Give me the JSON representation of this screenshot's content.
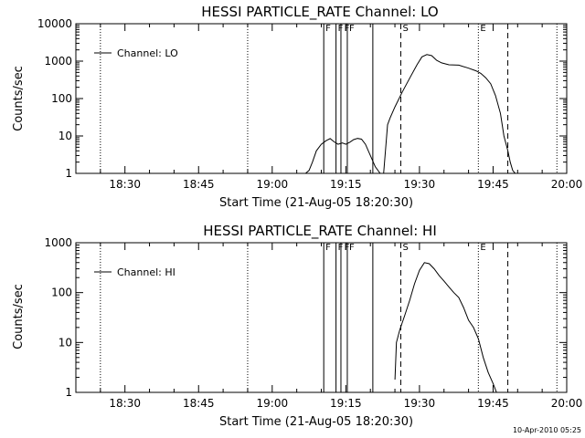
{
  "chart_data": [
    {
      "type": "line",
      "title": "HESSI PARTICLE_RATE Channel: LO",
      "xlabel": "Start Time (21-Aug-05 18:20:30)",
      "ylabel": "Counts/sec",
      "x_tick_labels": [
        "18:30",
        "18:45",
        "19:00",
        "19:15",
        "19:30",
        "19:45",
        "20:00"
      ],
      "x_ticks_min": [
        10,
        25,
        40,
        55,
        70,
        85,
        100
      ],
      "xlim_min": [
        0,
        100
      ],
      "yscale": "log",
      "ylim": [
        1,
        10000
      ],
      "y_ticks": [
        1,
        10,
        100,
        1000,
        10000
      ],
      "y_tick_labels": [
        "1",
        "10",
        "100",
        "1000",
        "10000"
      ],
      "legend": {
        "position": "top-left",
        "entries": [
          "Channel: LO"
        ]
      },
      "series": [
        {
          "name": "Channel: LO",
          "points": [
            [
              0,
              1
            ],
            [
              43,
              1
            ]
          ],
          "x_min": [
            46.8,
            47.5,
            48.2,
            49.0,
            50.0,
            51.0,
            51.8,
            52.6,
            53.4,
            54.3,
            55.0,
            55.8,
            56.6,
            57.4,
            58.2,
            59.0,
            60.0,
            61.0,
            62.0,
            62.7,
            63.5,
            64.0,
            65.0,
            66.5,
            68.0,
            69.5,
            70.5,
            71.5,
            72.5,
            73.5,
            74.5,
            76.0,
            78.0,
            80.0,
            81.5,
            82.5,
            83.5,
            84.5,
            85.5,
            86.5,
            87.2,
            88.0,
            88.5,
            89.0,
            89.5,
            89.8
          ],
          "y": [
            1,
            1.2,
            2,
            4,
            6,
            7.5,
            8.5,
            7,
            6,
            6.5,
            6,
            6.8,
            8,
            8.6,
            8.2,
            6,
            3,
            1.5,
            1,
            1,
            20,
            30,
            60,
            150,
            350,
            800,
            1300,
            1500,
            1400,
            1050,
            900,
            800,
            780,
            650,
            550,
            470,
            360,
            250,
            120,
            40,
            10,
            4,
            2,
            1.2,
            1,
            1
          ]
        }
      ],
      "dotted_lines_min": [
        5,
        35,
        82,
        98
      ],
      "solid_lines_min": [
        50.5,
        53.0,
        54.0,
        55.3,
        60.5
      ],
      "dashed_lines_min": [
        66.2,
        88.0
      ],
      "markers": [
        {
          "label": "F",
          "x_min": 50.5
        },
        {
          "label": "F",
          "x_min": 53.0
        },
        {
          "label": "F",
          "x_min": 54.3
        },
        {
          "label": "F",
          "x_min": 55.3
        },
        {
          "label": "S",
          "x_min": 66.2
        },
        {
          "label": "E",
          "x_min": 82.0
        }
      ]
    },
    {
      "type": "line",
      "title": "HESSI PARTICLE_RATE Channel: HI",
      "xlabel": "Start Time (21-Aug-05 18:20:30)",
      "ylabel": "Counts/sec",
      "x_tick_labels": [
        "18:30",
        "18:45",
        "19:00",
        "19:15",
        "19:30",
        "19:45",
        "20:00"
      ],
      "x_ticks_min": [
        10,
        25,
        40,
        55,
        70,
        85,
        100
      ],
      "xlim_min": [
        0,
        100
      ],
      "yscale": "log",
      "ylim": [
        1,
        1000
      ],
      "y_ticks": [
        1,
        10,
        100,
        1000
      ],
      "y_tick_labels": [
        "1",
        "10",
        "100",
        "1000"
      ],
      "legend": {
        "position": "top-left",
        "entries": [
          "Channel: HI"
        ]
      },
      "series": [
        {
          "name": "Channel: HI",
          "x_min": [
            65.0,
            65.3,
            66.0,
            67.0,
            68.0,
            69.0,
            70.0,
            71.0,
            72.0,
            73.0,
            74.0,
            75.0,
            76.0,
            77.0,
            78.0,
            79.0,
            80.0,
            81.0,
            82.0,
            83.0,
            84.0,
            85.0,
            85.7
          ],
          "y": [
            1.8,
            10,
            18,
            35,
            70,
            150,
            280,
            400,
            380,
            300,
            220,
            170,
            130,
            100,
            80,
            50,
            28,
            20,
            12,
            5,
            2.5,
            1.5,
            1
          ]
        }
      ],
      "dotted_lines_min": [
        5,
        35,
        82,
        98
      ],
      "solid_lines_min": [
        50.5,
        53.0,
        54.0,
        55.3,
        60.5
      ],
      "dashed_lines_min": [
        66.2,
        88.0
      ],
      "markers": [
        {
          "label": "F",
          "x_min": 50.5
        },
        {
          "label": "F",
          "x_min": 53.0
        },
        {
          "label": "F",
          "x_min": 54.3
        },
        {
          "label": "F",
          "x_min": 55.3
        },
        {
          "label": "S",
          "x_min": 66.2
        },
        {
          "label": "E",
          "x_min": 82.0
        }
      ]
    }
  ],
  "footer": {
    "timestamp": "10-Apr-2010 05:25"
  }
}
